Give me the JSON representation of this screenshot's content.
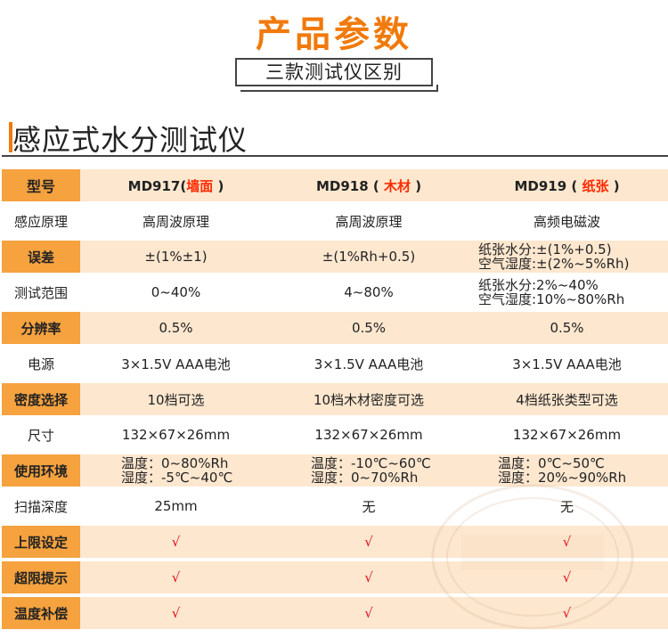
{
  "header": {
    "main_title": "产品参数",
    "subtitle": "三款测试仪区别",
    "section_title": "感应式水分测试仪"
  },
  "table": {
    "header": {
      "label": "型号",
      "models": [
        {
          "code": "MD917",
          "open": "(",
          "type": "墙面",
          "close": " )"
        },
        {
          "code": "MD918",
          "open": " ( ",
          "type": "木材",
          "close": " )"
        },
        {
          "code": "MD919",
          "open": " ( ",
          "type": "纸张",
          "close": " )"
        }
      ]
    },
    "rows": [
      {
        "label": "感应原理",
        "values": [
          "高周波原理",
          "高周波原理",
          "高频电磁波"
        ]
      },
      {
        "label": "误差",
        "values": [
          "±(1%±1)",
          "±(1%Rh+0.5)"
        ],
        "multi": [
          "纸张水分:±(1%+0.5)",
          "空气湿度:±(2%~5%Rh)"
        ]
      },
      {
        "label": "测试范围",
        "values": [
          "0~40%",
          "4~80%"
        ],
        "multi": [
          "纸张水分:2%~40%",
          "空气湿度:10%~80%Rh"
        ]
      },
      {
        "label": "分辨率",
        "values": [
          "0.5%",
          "0.5%",
          "0.5%"
        ]
      },
      {
        "label": "电源",
        "values": [
          "3×1.5V AAA电池",
          "3×1.5V AAA电池",
          "3×1.5V AAA电池"
        ]
      },
      {
        "label": "密度选择",
        "values": [
          "10档可选",
          "10档木材密度可选",
          "4档纸张类型可选"
        ]
      },
      {
        "label": "尺寸",
        "values": [
          "132×67×26mm",
          "132×67×26mm",
          "132×67×26mm"
        ]
      },
      {
        "label": "使用环境",
        "multi_cols": [
          [
            "温度：0~80%Rh",
            "湿度：-5℃~40℃"
          ],
          [
            "温度：-10℃~60℃",
            "湿度：0~70%Rh"
          ],
          [
            "温度：0℃~50℃",
            "湿度：20%~90%Rh"
          ]
        ]
      },
      {
        "label": "扫描深度",
        "values": [
          "25mm",
          "无",
          "无"
        ]
      },
      {
        "label": "上限设定",
        "values": [
          "√",
          "√",
          "√"
        ]
      },
      {
        "label": "超限提示",
        "values": [
          "√",
          "√",
          "√"
        ]
      },
      {
        "label": "温度补偿",
        "values": [
          "√",
          "√",
          "√"
        ]
      }
    ]
  },
  "colors": {
    "accent": "#f07a0c",
    "label_bg": "#f5a23f",
    "row_bg": "#fde7cf",
    "check": "#e0101a",
    "model_type": "#ff2a00"
  }
}
